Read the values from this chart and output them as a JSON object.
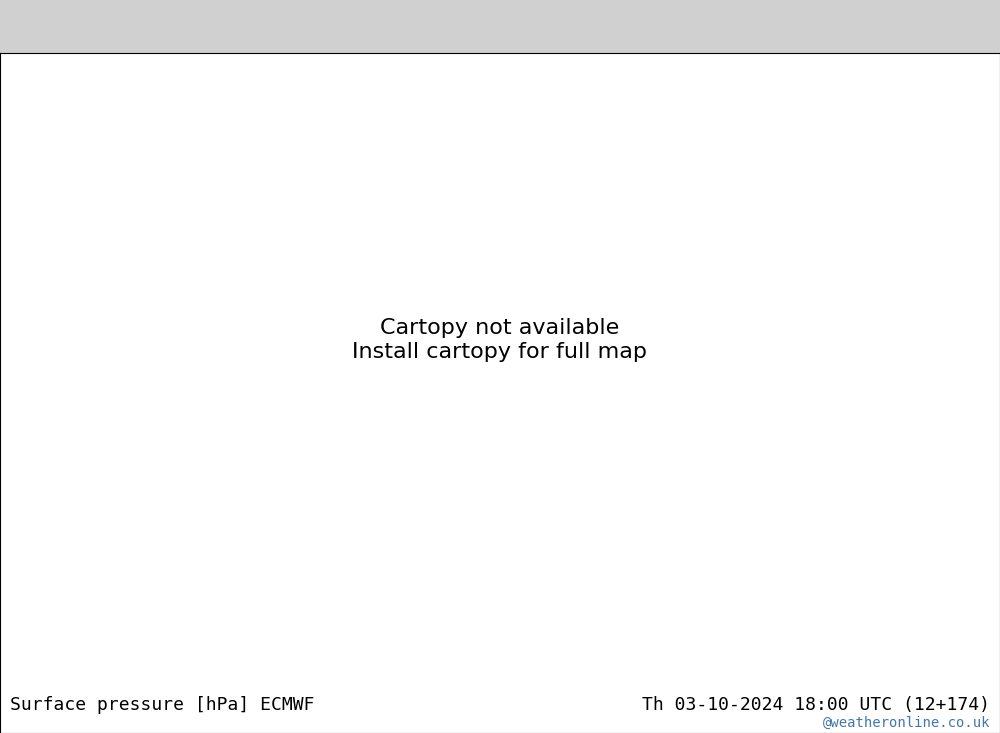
{
  "title_left": "Surface pressure [hPa] ECMWF",
  "title_right": "Th 03-10-2024 18:00 UTC (12+174)",
  "credit": "@weatheronline.co.uk",
  "background_color": "#d8d8d8",
  "land_color": "#b8e0a0",
  "ocean_color": "#d8d8d8",
  "title_fontsize": 13,
  "credit_fontsize": 10,
  "isobar_fontsize": 8,
  "figsize": [
    10.0,
    7.33
  ],
  "dpi": 100
}
